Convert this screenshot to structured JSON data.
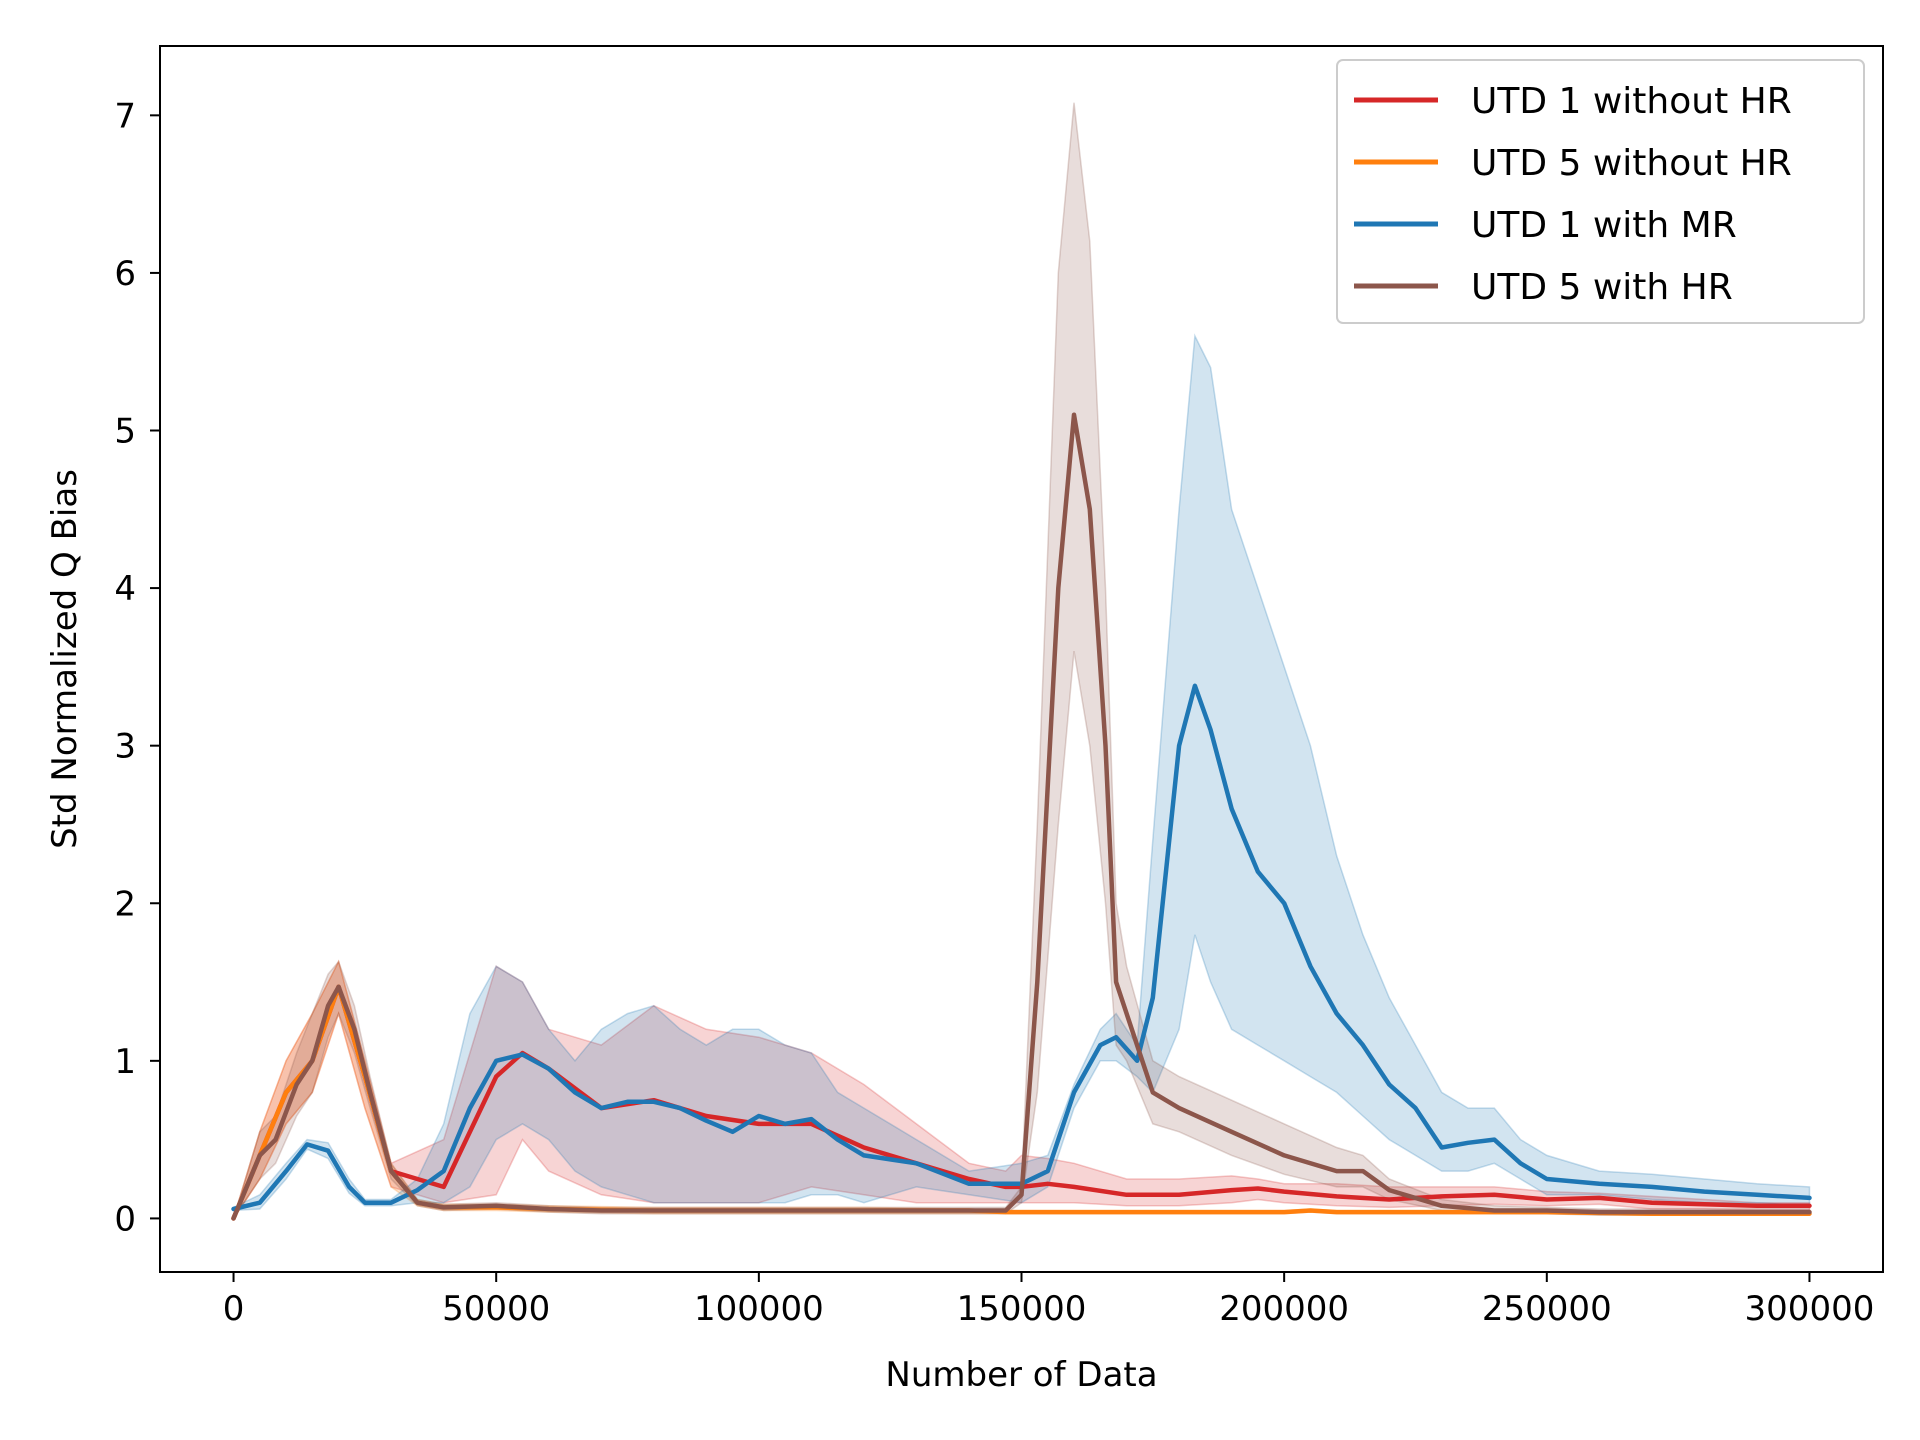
{
  "chart_data": {
    "type": "line",
    "title": "",
    "xlabel": "Number of Data",
    "ylabel": "Std Normalized Q Bias",
    "xlim": [
      -14000,
      314000
    ],
    "ylim": [
      -0.34,
      7.44
    ],
    "xticks": [
      0,
      50000,
      100000,
      150000,
      200000,
      250000,
      300000
    ],
    "xtick_labels": [
      "0",
      "50000",
      "100000",
      "150000",
      "200000",
      "250000",
      "300000"
    ],
    "yticks": [
      0,
      1,
      2,
      3,
      4,
      5,
      6,
      7
    ],
    "ytick_labels": [
      "0",
      "1",
      "2",
      "3",
      "4",
      "5",
      "6",
      "7"
    ],
    "grid": false,
    "legend_position": "upper right",
    "legend": [
      "UTD 1 without HR",
      "UTD 5 without HR",
      "UTD 1 with MR",
      "UTD 5 with HR"
    ],
    "series": [
      {
        "name": "UTD 1 without HR",
        "color": "#d62728",
        "x": [
          0,
          5000,
          10000,
          15000,
          20000,
          25000,
          30000,
          40000,
          50000,
          55000,
          60000,
          70000,
          80000,
          90000,
          100000,
          110000,
          120000,
          130000,
          140000,
          147000,
          150000,
          155000,
          160000,
          170000,
          180000,
          190000,
          195000,
          200000,
          210000,
          220000,
          230000,
          240000,
          250000,
          260000,
          270000,
          280000,
          290000,
          300000
        ],
        "y": [
          0.0,
          0.4,
          0.8,
          1.0,
          1.47,
          0.9,
          0.3,
          0.2,
          0.9,
          1.05,
          0.95,
          0.7,
          0.75,
          0.65,
          0.6,
          0.6,
          0.45,
          0.35,
          0.25,
          0.2,
          0.2,
          0.22,
          0.2,
          0.15,
          0.15,
          0.18,
          0.19,
          0.17,
          0.14,
          0.12,
          0.14,
          0.15,
          0.12,
          0.13,
          0.1,
          0.09,
          0.08,
          0.08
        ],
        "band_upper": [
          0.0,
          0.55,
          1.0,
          1.3,
          1.63,
          1.0,
          0.35,
          0.5,
          1.6,
          1.5,
          1.2,
          1.1,
          1.35,
          1.2,
          1.15,
          1.05,
          0.85,
          0.6,
          0.35,
          0.3,
          0.4,
          0.38,
          0.35,
          0.25,
          0.25,
          0.27,
          0.25,
          0.22,
          0.22,
          0.2,
          0.2,
          0.2,
          0.17,
          0.16,
          0.14,
          0.12,
          0.1,
          0.1
        ],
        "band_lower": [
          0.0,
          0.25,
          0.6,
          0.8,
          1.3,
          0.7,
          0.2,
          0.1,
          0.15,
          0.5,
          0.3,
          0.15,
          0.1,
          0.1,
          0.1,
          0.2,
          0.15,
          0.1,
          0.1,
          0.1,
          0.1,
          0.1,
          0.1,
          0.08,
          0.08,
          0.1,
          0.12,
          0.1,
          0.08,
          0.07,
          0.08,
          0.09,
          0.08,
          0.09,
          0.06,
          0.06,
          0.05,
          0.05
        ]
      },
      {
        "name": "UTD 5 without HR",
        "color": "#ff7f0e",
        "x": [
          0,
          5000,
          10000,
          15000,
          20000,
          25000,
          30000,
          35000,
          40000,
          50000,
          60000,
          80000,
          100000,
          120000,
          140000,
          147000,
          150000,
          170000,
          190000,
          200000,
          205000,
          210000,
          230000,
          250000,
          270000,
          300000
        ],
        "y": [
          0.0,
          0.4,
          0.8,
          1.0,
          1.47,
          0.9,
          0.3,
          0.1,
          0.07,
          0.07,
          0.06,
          0.05,
          0.05,
          0.05,
          0.05,
          0.04,
          0.04,
          0.04,
          0.04,
          0.04,
          0.05,
          0.04,
          0.04,
          0.04,
          0.03,
          0.03
        ],
        "band_upper": [
          0.0,
          0.55,
          1.0,
          1.3,
          1.63,
          1.0,
          0.35,
          0.12,
          0.09,
          0.09,
          0.08,
          0.07,
          0.07,
          0.07,
          0.06,
          0.05,
          0.05,
          0.05,
          0.05,
          0.05,
          0.06,
          0.05,
          0.05,
          0.05,
          0.04,
          0.04
        ],
        "band_lower": [
          0.0,
          0.25,
          0.6,
          0.8,
          1.3,
          0.7,
          0.2,
          0.08,
          0.05,
          0.05,
          0.04,
          0.03,
          0.03,
          0.03,
          0.03,
          0.03,
          0.03,
          0.03,
          0.03,
          0.03,
          0.04,
          0.03,
          0.03,
          0.03,
          0.02,
          0.02
        ]
      },
      {
        "name": "UTD 1 with MR",
        "color": "#1f77b4",
        "x": [
          0,
          5000,
          10000,
          14000,
          18000,
          22000,
          25000,
          30000,
          35000,
          40000,
          45000,
          50000,
          55000,
          60000,
          65000,
          70000,
          75000,
          80000,
          85000,
          90000,
          95000,
          100000,
          105000,
          110000,
          115000,
          120000,
          130000,
          140000,
          150000,
          155000,
          160000,
          165000,
          168000,
          172000,
          175000,
          180000,
          183000,
          186000,
          190000,
          195000,
          200000,
          205000,
          210000,
          215000,
          220000,
          225000,
          230000,
          235000,
          240000,
          245000,
          250000,
          260000,
          270000,
          280000,
          290000,
          300000
        ],
        "y": [
          0.06,
          0.1,
          0.3,
          0.47,
          0.43,
          0.2,
          0.1,
          0.1,
          0.18,
          0.3,
          0.7,
          1.0,
          1.04,
          0.95,
          0.8,
          0.7,
          0.74,
          0.74,
          0.7,
          0.62,
          0.55,
          0.65,
          0.6,
          0.63,
          0.5,
          0.4,
          0.35,
          0.22,
          0.22,
          0.3,
          0.8,
          1.1,
          1.15,
          1.0,
          1.4,
          3.0,
          3.38,
          3.1,
          2.6,
          2.2,
          2.0,
          1.6,
          1.3,
          1.1,
          0.85,
          0.7,
          0.45,
          0.48,
          0.5,
          0.35,
          0.25,
          0.22,
          0.2,
          0.17,
          0.15,
          0.13
        ],
        "band_upper": [
          0.07,
          0.15,
          0.35,
          0.5,
          0.48,
          0.25,
          0.12,
          0.12,
          0.25,
          0.6,
          1.3,
          1.6,
          1.5,
          1.2,
          1.0,
          1.2,
          1.3,
          1.35,
          1.2,
          1.1,
          1.2,
          1.2,
          1.1,
          1.05,
          0.8,
          0.7,
          0.5,
          0.3,
          0.35,
          0.4,
          0.85,
          1.2,
          1.3,
          1.1,
          2.4,
          4.5,
          5.6,
          5.4,
          4.5,
          4.0,
          3.5,
          3.0,
          2.3,
          1.8,
          1.4,
          1.1,
          0.8,
          0.7,
          0.7,
          0.5,
          0.4,
          0.3,
          0.28,
          0.25,
          0.22,
          0.2
        ],
        "band_lower": [
          0.05,
          0.06,
          0.25,
          0.44,
          0.38,
          0.16,
          0.08,
          0.08,
          0.1,
          0.1,
          0.2,
          0.5,
          0.6,
          0.5,
          0.3,
          0.2,
          0.15,
          0.1,
          0.1,
          0.1,
          0.1,
          0.1,
          0.1,
          0.15,
          0.15,
          0.1,
          0.2,
          0.15,
          0.1,
          0.2,
          0.7,
          1.0,
          1.0,
          0.9,
          0.8,
          1.2,
          1.8,
          1.5,
          1.2,
          1.1,
          1.0,
          0.9,
          0.8,
          0.65,
          0.5,
          0.4,
          0.3,
          0.3,
          0.35,
          0.25,
          0.15,
          0.15,
          0.12,
          0.1,
          0.1,
          0.08
        ]
      },
      {
        "name": "UTD 5 with HR",
        "color": "#8c564b",
        "x": [
          0,
          5000,
          8000,
          12000,
          15000,
          18000,
          20000,
          23000,
          26000,
          30000,
          35000,
          40000,
          50000,
          60000,
          70000,
          80000,
          100000,
          120000,
          140000,
          147000,
          150000,
          153000,
          157000,
          160000,
          163000,
          166000,
          168000,
          170000,
          175000,
          180000,
          190000,
          200000,
          210000,
          215000,
          220000,
          230000,
          240000,
          250000,
          260000,
          280000,
          300000
        ],
        "y": [
          0.0,
          0.4,
          0.5,
          0.85,
          1.0,
          1.35,
          1.47,
          1.2,
          0.8,
          0.3,
          0.1,
          0.07,
          0.08,
          0.06,
          0.05,
          0.05,
          0.05,
          0.05,
          0.05,
          0.05,
          0.15,
          1.5,
          4.0,
          5.1,
          4.5,
          3.0,
          1.5,
          1.3,
          0.8,
          0.7,
          0.55,
          0.4,
          0.3,
          0.3,
          0.18,
          0.08,
          0.05,
          0.05,
          0.04,
          0.04,
          0.04
        ],
        "band_upper": [
          0.0,
          0.55,
          0.65,
          1.05,
          1.3,
          1.55,
          1.63,
          1.35,
          0.9,
          0.35,
          0.12,
          0.09,
          0.1,
          0.08,
          0.07,
          0.07,
          0.07,
          0.07,
          0.07,
          0.07,
          0.2,
          2.5,
          6.0,
          7.08,
          6.2,
          4.0,
          2.0,
          1.6,
          1.0,
          0.9,
          0.75,
          0.6,
          0.45,
          0.4,
          0.25,
          0.12,
          0.08,
          0.07,
          0.06,
          0.06,
          0.06
        ],
        "band_lower": [
          0.0,
          0.25,
          0.35,
          0.65,
          0.8,
          1.15,
          1.3,
          1.05,
          0.7,
          0.25,
          0.08,
          0.05,
          0.06,
          0.04,
          0.03,
          0.03,
          0.03,
          0.03,
          0.03,
          0.03,
          0.1,
          0.8,
          2.5,
          3.6,
          3.0,
          2.0,
          1.1,
          1.0,
          0.6,
          0.55,
          0.4,
          0.28,
          0.2,
          0.2,
          0.12,
          0.05,
          0.03,
          0.03,
          0.02,
          0.02,
          0.02
        ]
      }
    ]
  }
}
